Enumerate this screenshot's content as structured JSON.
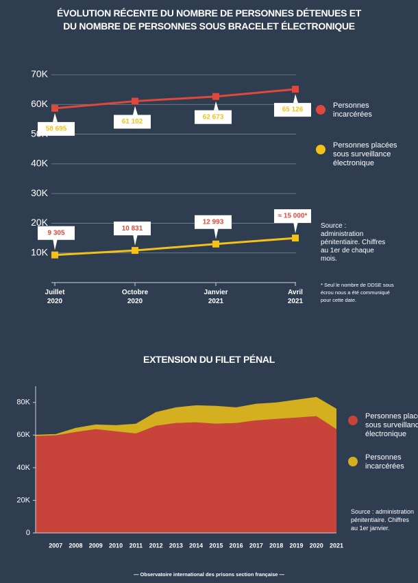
{
  "chart_data": [
    {
      "type": "line",
      "title": "ÉVOLUTION RÉCENTE DU NOMBRE DE PERSONNES DÉTENUES ET DU NOMBRE DE PERSONNES SOUS BRACELET ÉLECTRONIQUE",
      "categories": [
        "Juillet 2020",
        "Octobre 2020",
        "Janvier 2021",
        "Avril 2021"
      ],
      "series": [
        {
          "name": "Personnes incarcérées",
          "color": "#e0483b",
          "values": [
            58695,
            61102,
            62673,
            65126
          ],
          "value_labels": [
            "58 695",
            "61 102",
            "62 673",
            "65 126"
          ]
        },
        {
          "name": "Personnes placées sous surveillance électronique",
          "color": "#f2c21b",
          "values": [
            9305,
            10831,
            12993,
            15000
          ],
          "value_labels": [
            "9 305",
            "10 831",
            "12 993",
            "≈ 15 000*"
          ]
        }
      ],
      "ylim": [
        0,
        70000
      ],
      "yticks": [
        {
          "value": 10000,
          "label": "10K"
        },
        {
          "value": 20000,
          "label": "20K"
        },
        {
          "value": 30000,
          "label": "30K"
        },
        {
          "value": 40000,
          "label": "40K"
        },
        {
          "value": 50000,
          "label": "50K"
        },
        {
          "value": 60000,
          "label": "60K"
        },
        {
          "value": 70000,
          "label": "70K"
        }
      ],
      "grid": true,
      "source": "Source : administration pénitentiaire. Chiffres au 1er de chaque mois.",
      "footnote": "* Seul le nombre de DDSE sous écrou nous a été communiqué pour cette date."
    },
    {
      "type": "area",
      "stacked": true,
      "title": "EXTENSION DU FILET PÉNAL",
      "categories": [
        null,
        "2007",
        "2008",
        "2009",
        "2010",
        "2011",
        "2012",
        "2013",
        "2014",
        "2015",
        "2016",
        "2017",
        "2018",
        "2019",
        "2020",
        "2021"
      ],
      "series": [
        {
          "name": "Personnes placées sous surveillance électronique",
          "color": "#c8433a",
          "values": [
            59400,
            59800,
            61900,
            63600,
            62300,
            61000,
            65700,
            67400,
            67800,
            67000,
            67400,
            69000,
            69900,
            70700,
            71600,
            63600
          ]
        },
        {
          "name": "Personnes incarcérées",
          "color": "#d4af1f",
          "values": [
            800,
            800,
            2500,
            2900,
            3800,
            6000,
            8400,
            9600,
            10500,
            10900,
            9600,
            10200,
            10100,
            11000,
            11800,
            12600
          ]
        }
      ],
      "ylim": [
        0,
        90000
      ],
      "yticks": [
        0,
        {
          "value": 20000,
          "label": "20K"
        },
        {
          "value": 40000,
          "label": "40K"
        },
        {
          "value": 60000,
          "label": "60K"
        },
        {
          "value": 80000,
          "label": "80K"
        }
      ],
      "source": "Source : administration pénitentiaire. Chiffres au 1er janvier."
    }
  ],
  "footer": "— Observatoire international des prisons section française —"
}
